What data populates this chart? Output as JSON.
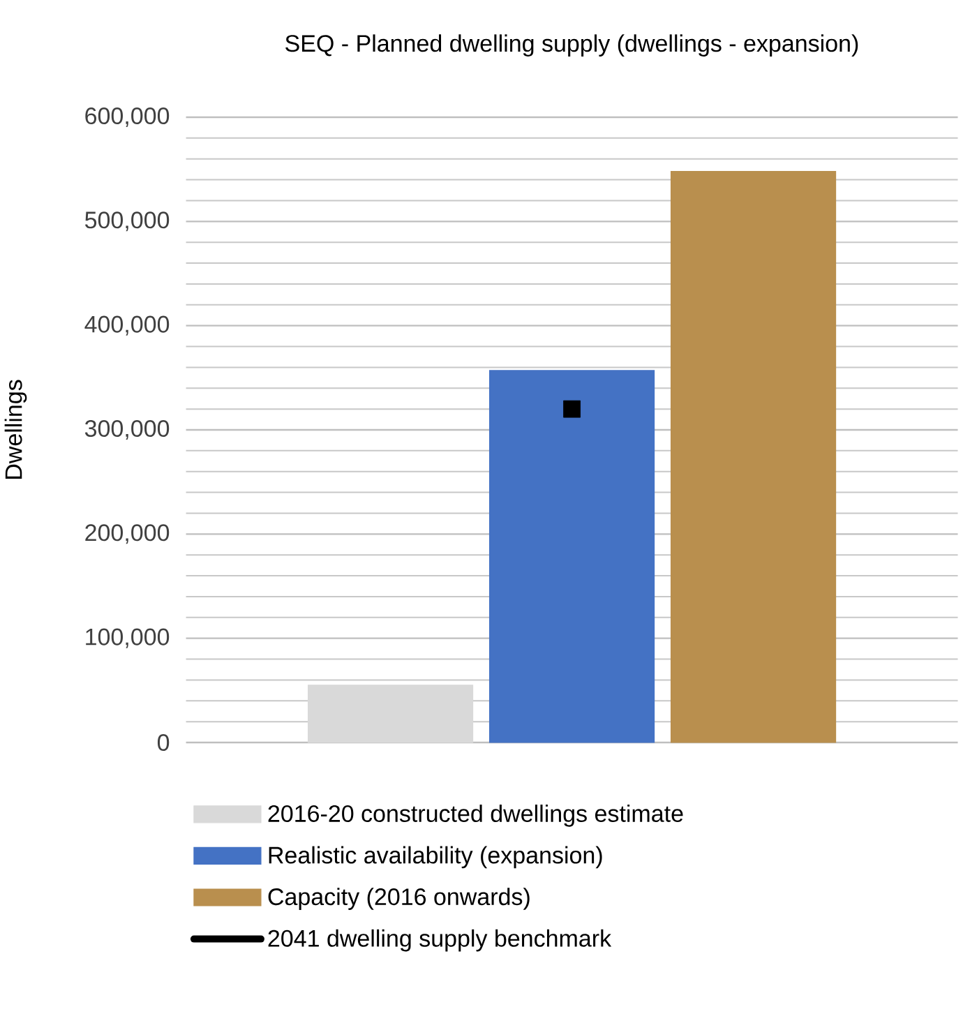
{
  "chart_data": {
    "type": "bar",
    "title": "SEQ - Planned dwelling supply (dwellings - expansion)",
    "ylabel": "Dwellings",
    "categories": [
      null
    ],
    "series": [
      {
        "name": "2016-20 constructed dwellings estimate",
        "color": "#d9d9d9",
        "values": [
          55000
        ]
      },
      {
        "name": "Realistic availability (expansion)",
        "color": "#4472c4",
        "values": [
          357000
        ]
      },
      {
        "name": "Capacity (2016 onwards)",
        "color": "#b98f4e",
        "values": [
          548000
        ]
      },
      {
        "name": "2041 dwelling supply benchmark",
        "type": "scatter",
        "marker": "square",
        "color": "#000000",
        "values": [
          320000
        ]
      }
    ],
    "ylim": [
      0,
      600000
    ],
    "yticks": [
      {
        "value": 0,
        "label": "0"
      },
      {
        "value": 100000,
        "label": "100,000"
      },
      {
        "value": 200000,
        "label": "200,000"
      },
      {
        "value": 300000,
        "label": "300,000"
      },
      {
        "value": 400000,
        "label": "400,000"
      },
      {
        "value": 500000,
        "label": "500,000"
      },
      {
        "value": 600000,
        "label": "600,000"
      }
    ],
    "grid": "y",
    "legend": "bottom"
  }
}
